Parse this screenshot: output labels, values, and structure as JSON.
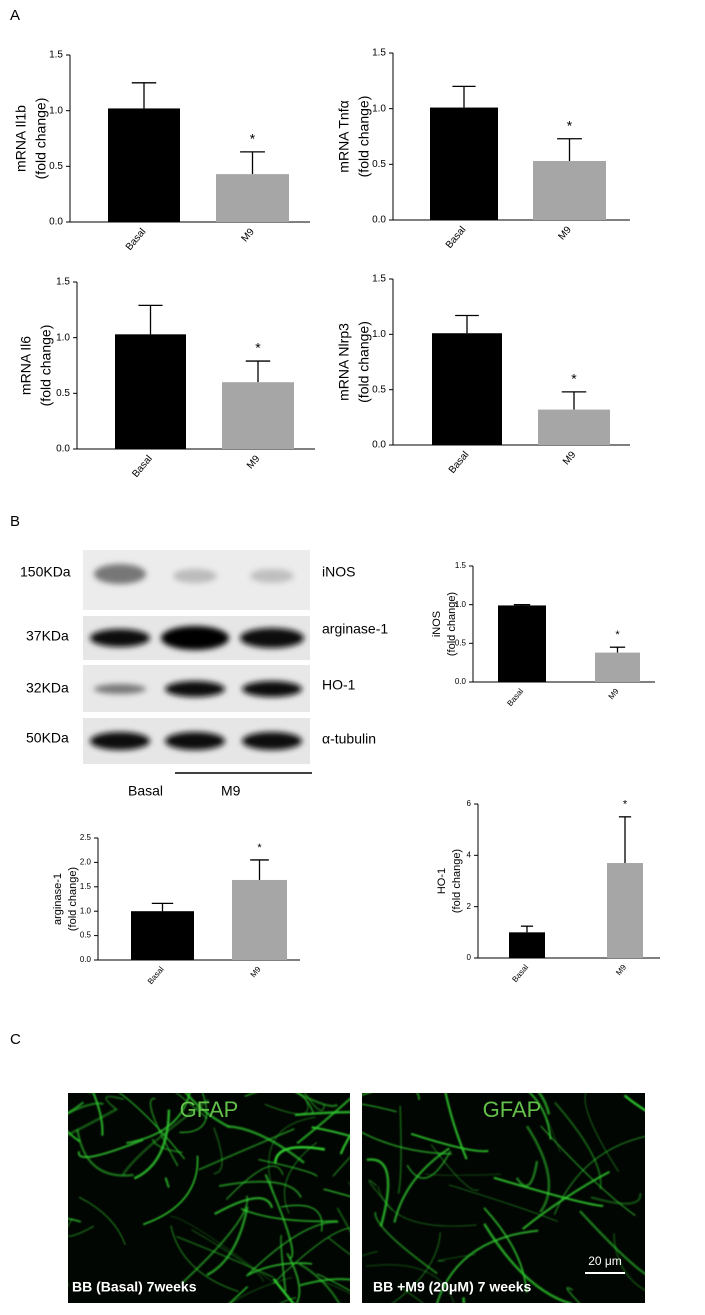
{
  "panel_labels": [
    "A",
    "B",
    "C"
  ],
  "chart_data": [
    {
      "type": "bar",
      "y_label": [
        "mRNA Il1b",
        "(fold change)"
      ],
      "categories": [
        "Basal",
        "M9"
      ],
      "values": [
        1.02,
        0.43
      ],
      "errors": [
        0.23,
        0.2
      ],
      "colors": [
        "#000000",
        "#a6a6a6"
      ],
      "ylim": [
        0,
        1.5
      ],
      "yticks": [
        {
          "value": 0,
          "label": "0.0"
        },
        {
          "value": 0.5,
          "label": "0.5"
        },
        {
          "value": 1,
          "label": "1.0"
        },
        {
          "value": 1.5,
          "label": "1.5"
        }
      ],
      "annotation": "*"
    },
    {
      "type": "bar",
      "y_label": [
        "mRNA Tnfα",
        "(fold change)"
      ],
      "categories": [
        "Basal",
        "M9"
      ],
      "values": [
        1.01,
        0.53
      ],
      "errors": [
        0.19,
        0.2
      ],
      "colors": [
        "#000000",
        "#a6a6a6"
      ],
      "ylim": [
        0,
        1.5
      ],
      "yticks": [
        {
          "value": 0,
          "label": "0.0"
        },
        {
          "value": 0.5,
          "label": "0.5"
        },
        {
          "value": 1,
          "label": "1.0"
        },
        {
          "value": 1.5,
          "label": "1.5"
        }
      ],
      "annotation": "*"
    },
    {
      "type": "bar",
      "y_label": [
        "mRNA Il6",
        "(fold change)"
      ],
      "categories": [
        "Basal",
        "M9"
      ],
      "values": [
        1.03,
        0.6
      ],
      "errors": [
        0.26,
        0.19
      ],
      "colors": [
        "#000000",
        "#a6a6a6"
      ],
      "ylim": [
        0,
        1.5
      ],
      "yticks": [
        {
          "value": 0,
          "label": "0.0"
        },
        {
          "value": 0.5,
          "label": "0.5"
        },
        {
          "value": 1,
          "label": "1.0"
        },
        {
          "value": 1.5,
          "label": "1.5"
        }
      ],
      "annotation": "*"
    },
    {
      "type": "bar",
      "y_label": [
        "mRNA Nlrp3",
        "(fold change)"
      ],
      "categories": [
        "Basal",
        "M9"
      ],
      "values": [
        1.01,
        0.32
      ],
      "errors": [
        0.16,
        0.16
      ],
      "colors": [
        "#000000",
        "#a6a6a6"
      ],
      "ylim": [
        0,
        1.5
      ],
      "yticks": [
        {
          "value": 0,
          "label": "0.0"
        },
        {
          "value": 0.5,
          "label": "0.5"
        },
        {
          "value": 1,
          "label": "1.0"
        },
        {
          "value": 1.5,
          "label": "1.5"
        }
      ],
      "annotation": "*"
    },
    {
      "type": "bar",
      "y_label": [
        "iNOS",
        "(fold change)"
      ],
      "categories": [
        "Basal",
        "M9"
      ],
      "values": [
        0.99,
        0.38
      ],
      "errors": [
        0.01,
        0.07
      ],
      "colors": [
        "#000000",
        "#a6a6a6"
      ],
      "ylim": [
        0,
        1.5
      ],
      "yticks": [
        {
          "value": 0,
          "label": "0.0"
        },
        {
          "value": 0.5,
          "label": "0.5"
        },
        {
          "value": 1,
          "label": "1.0"
        },
        {
          "value": 1.5,
          "label": "1.5"
        }
      ],
      "annotation": "*"
    },
    {
      "type": "bar",
      "y_label": [
        "arginase-1",
        "(fold change)"
      ],
      "categories": [
        "Basal",
        "M9"
      ],
      "values": [
        1.0,
        1.64
      ],
      "errors": [
        0.16,
        0.41
      ],
      "colors": [
        "#000000",
        "#a6a6a6"
      ],
      "ylim": [
        0,
        2.5
      ],
      "yticks": [
        {
          "value": 0,
          "label": "0.0"
        },
        {
          "value": 0.5,
          "label": "0.5"
        },
        {
          "value": 1,
          "label": "1.0"
        },
        {
          "value": 1.5,
          "label": "1.5"
        },
        {
          "value": 2,
          "label": "2.0"
        },
        {
          "value": 2.5,
          "label": "2.5"
        }
      ],
      "annotation": "*"
    },
    {
      "type": "bar",
      "y_label": [
        "HO-1",
        "(fold change)"
      ],
      "categories": [
        "Basal",
        "M9"
      ],
      "values": [
        1.0,
        3.7
      ],
      "errors": [
        0.24,
        1.8
      ],
      "colors": [
        "#000000",
        "#a6a6a6"
      ],
      "ylim": [
        0,
        6
      ],
      "yticks": [
        0,
        2,
        4,
        6
      ],
      "annotation": "*"
    }
  ],
  "blot": {
    "rows": [
      {
        "weight": "150KDa",
        "protein": "iNOS"
      },
      {
        "weight": "37KDa",
        "protein": "arginase-1"
      },
      {
        "weight": "32KDa",
        "protein": "HO-1"
      },
      {
        "weight": "50KDa",
        "protein": "α-tubulin"
      }
    ],
    "lanes": [
      "Basal",
      "M9"
    ]
  },
  "images": [
    {
      "label": "GFAP",
      "caption": "BB (Basal) 7weeks"
    },
    {
      "label": "GFAP",
      "caption": "BB +M9 (20μM) 7 weeks",
      "scale_bar": "20 μm"
    }
  ]
}
